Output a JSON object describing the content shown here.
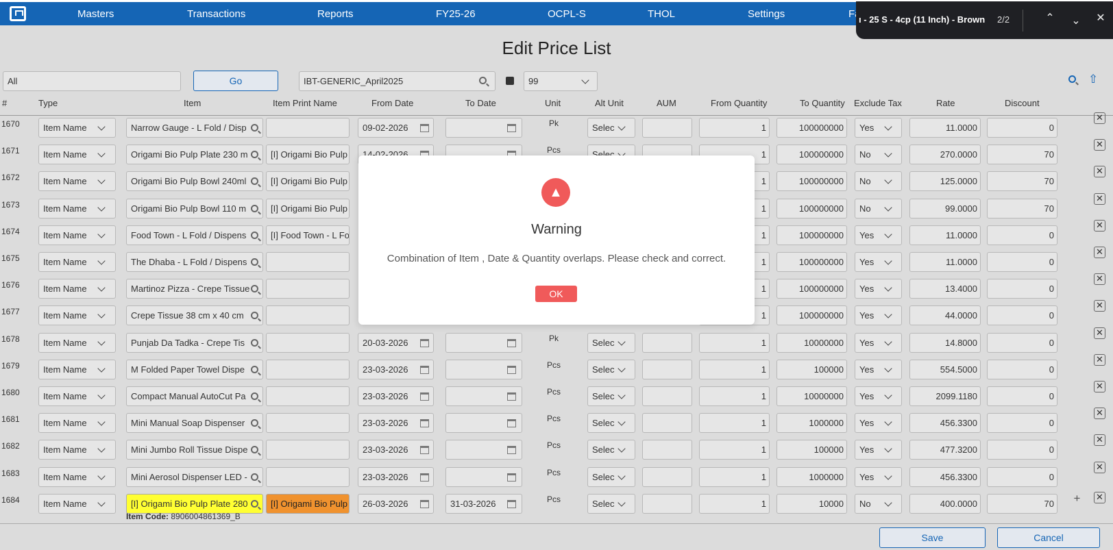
{
  "nav": {
    "items": [
      "Masters",
      "Transactions",
      "Reports",
      "FY25-26",
      "OCPL-S",
      "THOL",
      "Settings",
      "Fa"
    ]
  },
  "findbar": {
    "text": "ı - 25 S - 4cp (11 Inch) - Brown",
    "count": "2/2"
  },
  "page": {
    "title": "Edit Price List"
  },
  "filter": {
    "value": "All",
    "go_label": "Go",
    "pricelist": "IBT-GENERIC_April2025",
    "pagesize": "99"
  },
  "columns": [
    "#",
    "Type",
    "Item",
    "Item Print Name",
    "From Date",
    "To Date",
    "Unit",
    "Alt Unit",
    "AUM",
    "From Quantity",
    "To Quantity",
    "Exclude Tax",
    "Rate",
    "Discount"
  ],
  "rows": [
    {
      "no": "1670",
      "type": "Item Name",
      "item": "Narrow Gauge - L Fold / Disp",
      "print": "",
      "from": "09-02-2026",
      "to": "",
      "unit": "Pk",
      "alt": "Selec",
      "fq": "1",
      "tq": "100000000",
      "tax": "Yes",
      "rate": "11.0000",
      "disc": "0"
    },
    {
      "no": "1671",
      "type": "Item Name",
      "item": "Origami Bio Pulp Plate 230 m",
      "print": "[I] Origami Bio Pulp",
      "from": "14-02-2026",
      "to": "",
      "unit": "Pcs",
      "alt": "Selec",
      "fq": "1",
      "tq": "100000000",
      "tax": "No",
      "rate": "270.0000",
      "disc": "70"
    },
    {
      "no": "1672",
      "type": "Item Name",
      "item": "Origami Bio Pulp Bowl 240ml",
      "print": "[I] Origami Bio Pulp",
      "from": "",
      "to": "",
      "unit": "",
      "alt": "",
      "fq": "1",
      "tq": "100000000",
      "tax": "No",
      "rate": "125.0000",
      "disc": "70"
    },
    {
      "no": "1673",
      "type": "Item Name",
      "item": "Origami Bio Pulp  Bowl  110 m",
      "print": "[I] Origami Bio Pulp",
      "from": "",
      "to": "",
      "unit": "",
      "alt": "",
      "fq": "1",
      "tq": "100000000",
      "tax": "No",
      "rate": "99.0000",
      "disc": "70"
    },
    {
      "no": "1674",
      "type": "Item Name",
      "item": "Food Town - L Fold / Dispens",
      "print": "[I] Food Town - L Fo",
      "from": "",
      "to": "",
      "unit": "",
      "alt": "",
      "fq": "1",
      "tq": "100000000",
      "tax": "Yes",
      "rate": "11.0000",
      "disc": "0"
    },
    {
      "no": "1675",
      "type": "Item Name",
      "item": "The Dhaba - L Fold / Dispens",
      "print": "",
      "from": "",
      "to": "",
      "unit": "",
      "alt": "",
      "fq": "1",
      "tq": "100000000",
      "tax": "Yes",
      "rate": "11.0000",
      "disc": "0"
    },
    {
      "no": "1676",
      "type": "Item Name",
      "item": "Martinoz Pizza - Crepe Tissue",
      "print": "",
      "from": "",
      "to": "",
      "unit": "",
      "alt": "",
      "fq": "1",
      "tq": "100000000",
      "tax": "Yes",
      "rate": "13.4000",
      "disc": "0"
    },
    {
      "no": "1677",
      "type": "Item Name",
      "item": "Crepe Tissue 38 cm x 40 cm",
      "print": "",
      "from": "",
      "to": "",
      "unit": "",
      "alt": "",
      "fq": "1",
      "tq": "100000000",
      "tax": "Yes",
      "rate": "44.0000",
      "disc": "0"
    },
    {
      "no": "1678",
      "type": "Item Name",
      "item": "Punjab Da Tadka  - Crepe Tis",
      "print": "",
      "from": "20-03-2026",
      "to": "",
      "unit": "Pk",
      "alt": "Selec",
      "fq": "1",
      "tq": "10000000",
      "tax": "Yes",
      "rate": "14.8000",
      "disc": "0"
    },
    {
      "no": "1679",
      "type": "Item Name",
      "item": "M Folded Paper Towel Dispe",
      "print": "",
      "from": "23-03-2026",
      "to": "",
      "unit": "Pcs",
      "alt": "Selec",
      "fq": "1",
      "tq": "100000",
      "tax": "Yes",
      "rate": "554.5000",
      "disc": "0"
    },
    {
      "no": "1680",
      "type": "Item Name",
      "item": "Compact Manual AutoCut Pa",
      "print": "",
      "from": "23-03-2026",
      "to": "",
      "unit": "Pcs",
      "alt": "Selec",
      "fq": "1",
      "tq": "10000000",
      "tax": "Yes",
      "rate": "2099.1180",
      "disc": "0"
    },
    {
      "no": "1681",
      "type": "Item Name",
      "item": "Mini Manual Soap Dispenser",
      "print": "",
      "from": "23-03-2026",
      "to": "",
      "unit": "Pcs",
      "alt": "Selec",
      "fq": "1",
      "tq": "1000000",
      "tax": "Yes",
      "rate": "456.3300",
      "disc": "0"
    },
    {
      "no": "1682",
      "type": "Item Name",
      "item": "Mini Jumbo Roll Tissue Dispe",
      "print": "",
      "from": "23-03-2026",
      "to": "",
      "unit": "Pcs",
      "alt": "Selec",
      "fq": "1",
      "tq": "100000",
      "tax": "Yes",
      "rate": "477.3200",
      "disc": "0"
    },
    {
      "no": "1683",
      "type": "Item Name",
      "item": "Mini Aerosol Dispenser LED -",
      "print": "",
      "from": "23-03-2026",
      "to": "",
      "unit": "Pcs",
      "alt": "Selec",
      "fq": "1",
      "tq": "1000000",
      "tax": "Yes",
      "rate": "456.3300",
      "disc": "0"
    },
    {
      "no": "1684",
      "type": "Item Name",
      "item": "[I] Origami Bio Pulp Plate 280",
      "print": "[I] Origami Bio Pulp",
      "from": "26-03-2026",
      "to": "31-03-2026",
      "unit": "Pcs",
      "alt": "Selec",
      "fq": "1",
      "tq": "10000",
      "tax": "No",
      "rate": "400.0000",
      "disc": "70"
    }
  ],
  "item_code": {
    "label": "Item Code:",
    "value": "8906004861369_B"
  },
  "footer": {
    "save": "Save",
    "cancel": "Cancel"
  },
  "modal": {
    "title": "Warning",
    "message": "Combination of Item , Date & Quantity overlaps. Please check and correct.",
    "ok": "OK"
  },
  "colors": {
    "nav": "#1565b5",
    "accent_red": "#f05a5a",
    "highlight_yellow": "#ffff33",
    "highlight_orange": "#f0922e"
  }
}
